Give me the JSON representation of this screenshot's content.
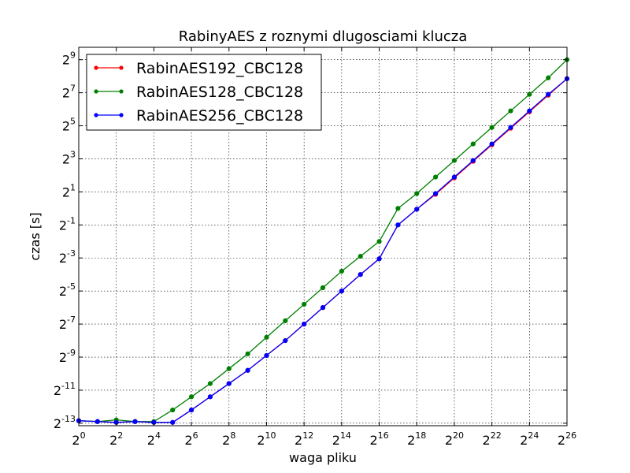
{
  "chart_data": {
    "type": "line",
    "title": "RabinyAES z roznymi dlugosciami klucza",
    "xlabel": "waga pliku",
    "ylabel": "czas [s]",
    "x_scale": "log2",
    "y_scale": "log2",
    "xlim_exp": [
      0,
      26
    ],
    "ylim_exp": [
      -13.15,
      9.75
    ],
    "x_tick_exponents": [
      "0",
      "2",
      "4",
      "6",
      "8",
      "10",
      "12",
      "14",
      "16",
      "18",
      "20",
      "22",
      "24",
      "26"
    ],
    "y_tick_exponents": [
      "-13",
      "-11",
      "-9",
      "-7",
      "-5",
      "-3",
      "-1",
      "1",
      "3",
      "5",
      "7",
      "9"
    ],
    "grid": true,
    "legend_position": "upper-left",
    "x_exponents": [
      0,
      1,
      2,
      3,
      4,
      5,
      6,
      7,
      8,
      9,
      10,
      11,
      12,
      13,
      14,
      15,
      16,
      17,
      18,
      19,
      20,
      21,
      22,
      23,
      24,
      25,
      26
    ],
    "series": [
      {
        "name": "RabinAES192_CBC128",
        "color": "#ff0000",
        "y_exponents": [
          -12.85,
          -12.9,
          -12.95,
          -12.9,
          -12.95,
          -12.95,
          -12.2,
          -11.4,
          -10.6,
          -9.8,
          -8.9,
          -8.0,
          -7.0,
          -6.0,
          -5.0,
          -4.0,
          -3.05,
          -1.0,
          -0.05,
          0.85,
          1.85,
          2.85,
          3.85,
          4.85,
          5.85,
          6.85,
          7.85
        ]
      },
      {
        "name": "RabinAES128_CBC128",
        "color": "#008000",
        "y_exponents": [
          -12.85,
          -12.9,
          -12.8,
          -12.9,
          -12.9,
          -12.2,
          -11.4,
          -10.6,
          -9.7,
          -8.8,
          -7.8,
          -6.8,
          -5.8,
          -4.8,
          -3.8,
          -2.9,
          -2.0,
          0.0,
          0.9,
          1.9,
          2.9,
          3.9,
          4.9,
          5.9,
          6.9,
          7.9,
          9.0
        ]
      },
      {
        "name": "RabinAES256_CBC128",
        "color": "#0000ff",
        "y_exponents": [
          -12.85,
          -12.9,
          -12.95,
          -12.9,
          -12.95,
          -12.95,
          -12.2,
          -11.4,
          -10.6,
          -9.8,
          -8.9,
          -8.0,
          -7.0,
          -6.0,
          -5.0,
          -4.0,
          -3.05,
          -1.0,
          -0.05,
          0.9,
          1.9,
          2.9,
          3.9,
          4.9,
          5.9,
          6.9,
          7.85
        ]
      }
    ]
  }
}
